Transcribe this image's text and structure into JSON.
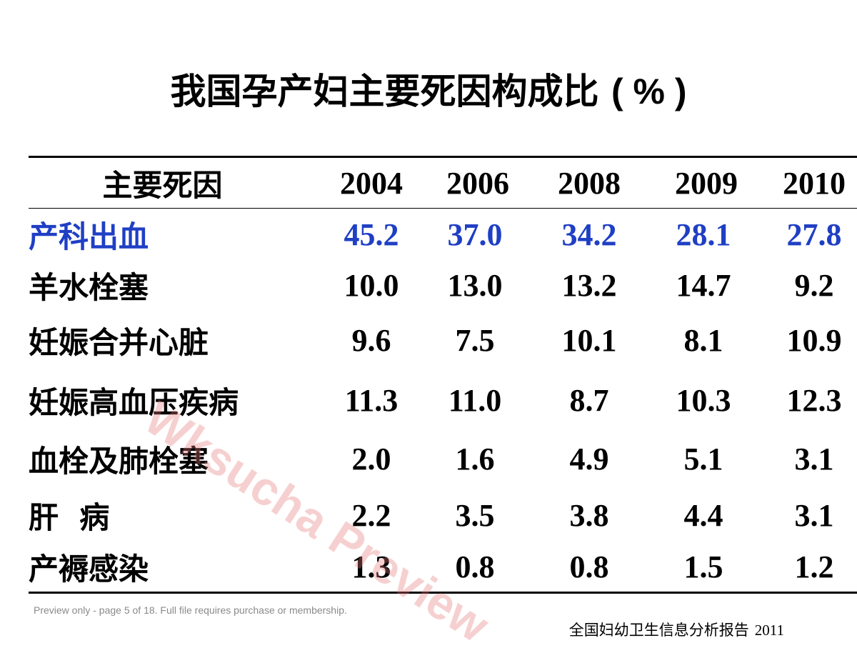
{
  "title": {
    "text": "我国孕产妇主要死因构成比",
    "suffix": "( % )"
  },
  "table": {
    "header": {
      "cause": "主要死因",
      "years": [
        "2004",
        "2006",
        "2008",
        "2009",
        "2010"
      ]
    },
    "rows": [
      {
        "cause": "产科出血",
        "values": [
          "45.2",
          "37.0",
          "34.2",
          "28.1",
          "27.8"
        ]
      },
      {
        "cause": "羊水栓塞",
        "values": [
          "10.0",
          "13.0",
          "13.2",
          "14.7",
          "9.2"
        ]
      },
      {
        "cause": "妊娠合并心脏",
        "values": [
          "9.6",
          "7.5",
          "10.1",
          "8.1",
          "10.9"
        ]
      },
      {
        "cause": "妊娠高血压疾病",
        "values": [
          "11.3",
          "11.0",
          "8.7",
          "10.3",
          "12.3"
        ]
      },
      {
        "cause": "血栓及肺栓塞",
        "values": [
          "2.0",
          "1.6",
          "4.9",
          "5.1",
          "3.1"
        ]
      },
      {
        "cause": "肝  病",
        "values": [
          "2.2",
          "3.5",
          "3.8",
          "4.4",
          "3.1"
        ]
      },
      {
        "cause": "产褥感染",
        "values": [
          "1.3",
          "0.8",
          "0.8",
          "1.5",
          "1.2"
        ]
      }
    ],
    "highlight_color": "#1f3fc4"
  },
  "watermark": "Wksucha Preview",
  "preview_note": "Preview only - page 5 of 18. Full file requires purchase or membership.",
  "source": {
    "text": "全国妇幼卫生信息分析报告",
    "year": "2011"
  }
}
